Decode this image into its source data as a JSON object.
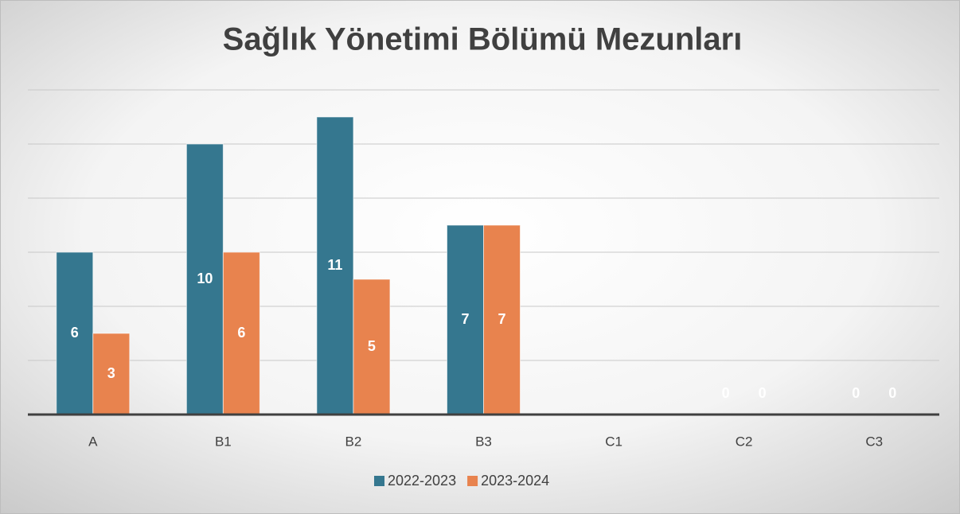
{
  "chart_data": {
    "type": "bar",
    "title": "Sağlık Yönetimi Bölümü Mezunları",
    "categories": [
      "A",
      "B1",
      "B2",
      "B3",
      "C1",
      "C2",
      "C3"
    ],
    "series": [
      {
        "name": "2022-2023",
        "color": "#35778f",
        "values": [
          6,
          10,
          11,
          7,
          null,
          0,
          0
        ]
      },
      {
        "name": "2023-2024",
        "color": "#e8834e",
        "values": [
          3,
          6,
          5,
          7,
          null,
          0,
          0
        ]
      }
    ],
    "ylim": [
      0,
      12
    ],
    "yticks": [
      0,
      2,
      4,
      6,
      8,
      10,
      12
    ],
    "grid": true,
    "legend": "bottom"
  }
}
